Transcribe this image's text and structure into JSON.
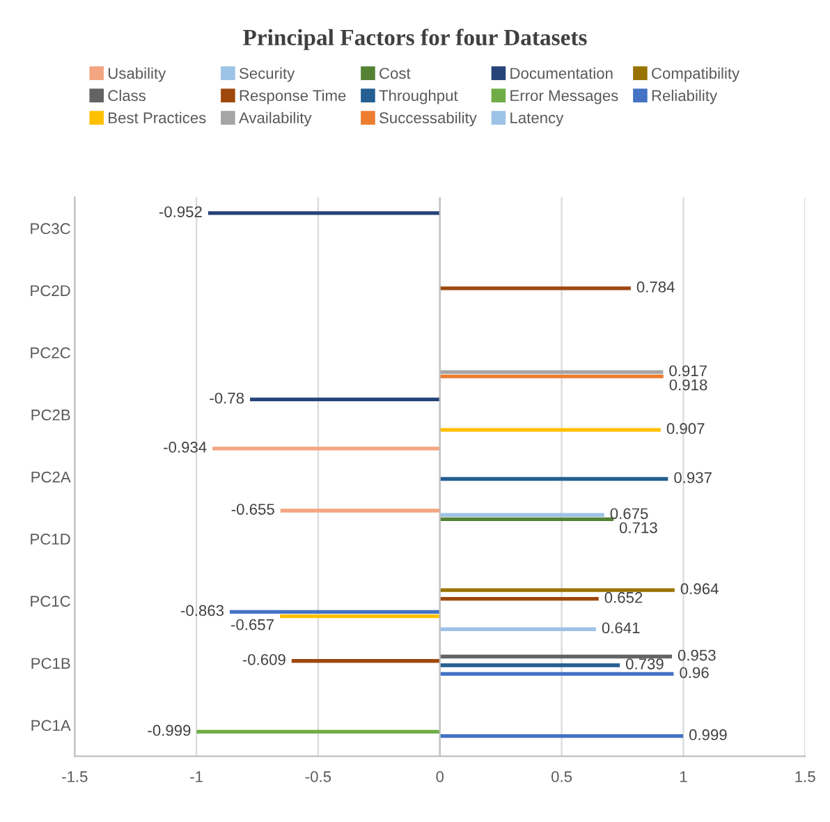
{
  "chart_data": {
    "type": "bar",
    "orientation": "horizontal",
    "title": "Principal Factors for four Datasets",
    "categories": [
      "PC3C",
      "PC2D",
      "PC2C",
      "PC2B",
      "PC2A",
      "PC1D",
      "PC1C",
      "PC1B",
      "PC1A"
    ],
    "series": [
      {
        "name": "Usability",
        "color": "#f4a582",
        "values": [
          null,
          null,
          null,
          null,
          -0.934,
          -0.655,
          null,
          null,
          null
        ]
      },
      {
        "name": "Security",
        "color": "#9dc3e6",
        "values": [
          null,
          null,
          null,
          null,
          null,
          0.675,
          null,
          null,
          null
        ]
      },
      {
        "name": "Cost",
        "color": "#548235",
        "values": [
          null,
          null,
          null,
          null,
          null,
          0.713,
          null,
          null,
          null
        ]
      },
      {
        "name": "Documentation",
        "color": "#264478",
        "values": [
          -0.952,
          null,
          null,
          -0.78,
          null,
          null,
          null,
          null,
          null
        ]
      },
      {
        "name": "Compatibility",
        "color": "#997300",
        "values": [
          null,
          null,
          null,
          null,
          null,
          null,
          0.964,
          null,
          null
        ]
      },
      {
        "name": "Class",
        "color": "#636363",
        "values": [
          null,
          null,
          null,
          null,
          null,
          null,
          null,
          0.953,
          null
        ]
      },
      {
        "name": "Response Time",
        "color": "#9e480e",
        "values": [
          null,
          0.784,
          null,
          null,
          null,
          null,
          0.652,
          -0.609,
          null
        ]
      },
      {
        "name": "Throughput",
        "color": "#255e91",
        "values": [
          null,
          null,
          null,
          null,
          0.937,
          null,
          null,
          0.739,
          null
        ]
      },
      {
        "name": "Error Messages",
        "color": "#70ad47",
        "values": [
          null,
          null,
          null,
          null,
          null,
          null,
          null,
          null,
          -0.999
        ]
      },
      {
        "name": "Reliability",
        "color": "#4472c4",
        "values": [
          null,
          null,
          null,
          null,
          null,
          null,
          -0.863,
          0.96,
          0.999
        ]
      },
      {
        "name": "Best Practices",
        "color": "#ffc000",
        "values": [
          null,
          null,
          null,
          0.907,
          null,
          null,
          -0.657,
          null,
          null
        ]
      },
      {
        "name": "Availability",
        "color": "#a5a5a5",
        "values": [
          null,
          null,
          0.917,
          null,
          null,
          null,
          null,
          null,
          null
        ]
      },
      {
        "name": "Successability",
        "color": "#ed7d31",
        "values": [
          null,
          null,
          0.918,
          null,
          null,
          null,
          null,
          null,
          null
        ]
      },
      {
        "name": "Latency",
        "color": "#9dc3e6",
        "values": [
          null,
          null,
          null,
          null,
          null,
          null,
          0.641,
          null,
          null
        ]
      }
    ],
    "xlim": [
      -1.5,
      1.5
    ],
    "xticks": [
      -1.5,
      -1,
      -0.5,
      0,
      0.5,
      1,
      1.5
    ],
    "grid": "x",
    "legend": "top",
    "data_labels": true
  }
}
